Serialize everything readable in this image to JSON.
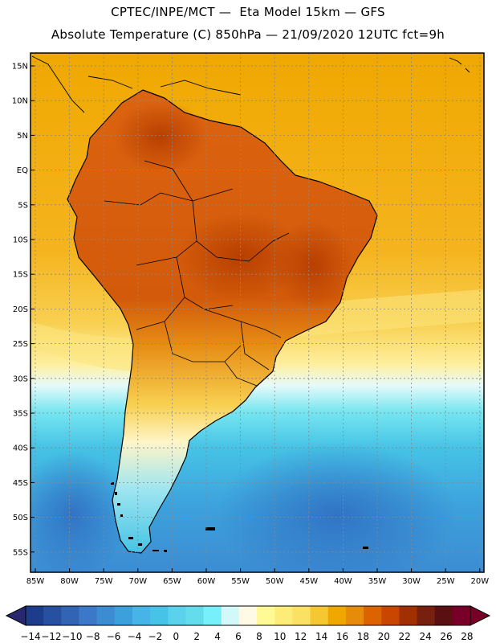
{
  "header": {
    "line1": "CPTEC/INPE/MCT —  Eta Model 15km — GFS",
    "line2": "Absolute Temperature (C) 850hPa — 21/09/2020 12UTC fct=9h"
  },
  "map": {
    "lat_labels": [
      "15N",
      "10N",
      "5N",
      "EQ",
      "5S",
      "10S",
      "15S",
      "20S",
      "25S",
      "30S",
      "35S",
      "40S",
      "45S",
      "50S",
      "55S"
    ],
    "lon_labels": [
      "85W",
      "80W",
      "75W",
      "70W",
      "65W",
      "60W",
      "55W",
      "50W",
      "45W",
      "40W",
      "35W",
      "30W",
      "25W",
      "20W"
    ],
    "ocean_gradient_colors": [
      "#f0a800",
      "#f8c832",
      "#fce680",
      "#fffac8",
      "#d2f8fa",
      "#64dceb",
      "#46c3e6",
      "#3ca0dc",
      "#3c8cd2"
    ],
    "land_hot_colors": [
      "#c84600",
      "#dc5f0a",
      "#e67814"
    ]
  },
  "colorbar": {
    "labels": [
      "-14",
      "-12",
      "-10",
      "-8",
      "-6",
      "-4",
      "-2",
      "0",
      "2",
      "4",
      "6",
      "8",
      "10",
      "12",
      "14",
      "16",
      "18",
      "20",
      "22",
      "24",
      "26",
      "28"
    ],
    "colors": [
      "#1e3c8c",
      "#2850a0",
      "#3264b4",
      "#3c78c8",
      "#3c8cd2",
      "#3ca0dc",
      "#46b4e6",
      "#46c3e6",
      "#5ad2eb",
      "#64dceb",
      "#78f0fa",
      "#d2f8fa",
      "#fffae6",
      "#fffa96",
      "#fcec78",
      "#fae164",
      "#f5c832",
      "#f0a800",
      "#e68c0a",
      "#dc6400",
      "#c84600",
      "#a03000",
      "#782010",
      "#5a1010",
      "#780028"
    ],
    "under_color": "#28286e",
    "over_color": "#780028"
  }
}
